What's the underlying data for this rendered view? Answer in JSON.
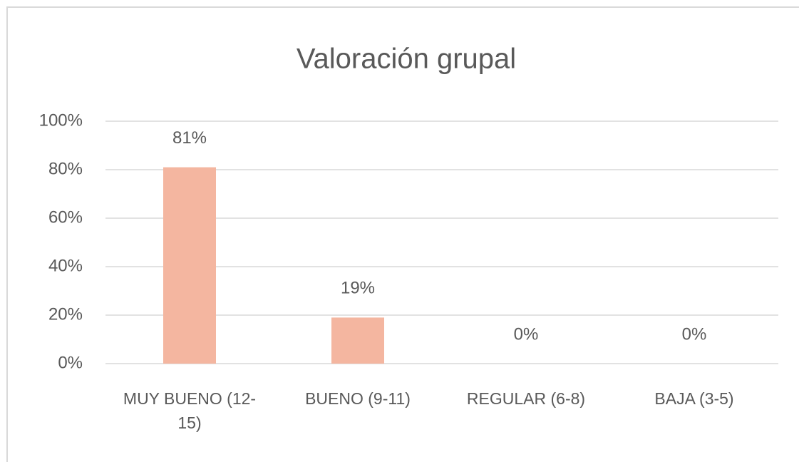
{
  "chart_data": {
    "type": "bar",
    "title": "Valoración grupal",
    "categories": [
      "MUY BUENO (12-15)",
      "BUENO (9-11)",
      "REGULAR (6-8)",
      "BAJA (3-5)"
    ],
    "values": [
      81,
      19,
      0,
      0
    ],
    "value_labels": [
      "81%",
      "19%",
      "0%",
      "0%"
    ],
    "color": "#f4b6a0",
    "ylim": [
      0,
      100
    ],
    "yticks": [
      {
        "value": 0,
        "label": "0%"
      },
      {
        "value": 20,
        "label": "20%"
      },
      {
        "value": 40,
        "label": "40%"
      },
      {
        "value": 60,
        "label": "60%"
      },
      {
        "value": 80,
        "label": "80%"
      },
      {
        "value": 100,
        "label": "100%"
      }
    ],
    "grid": true
  }
}
